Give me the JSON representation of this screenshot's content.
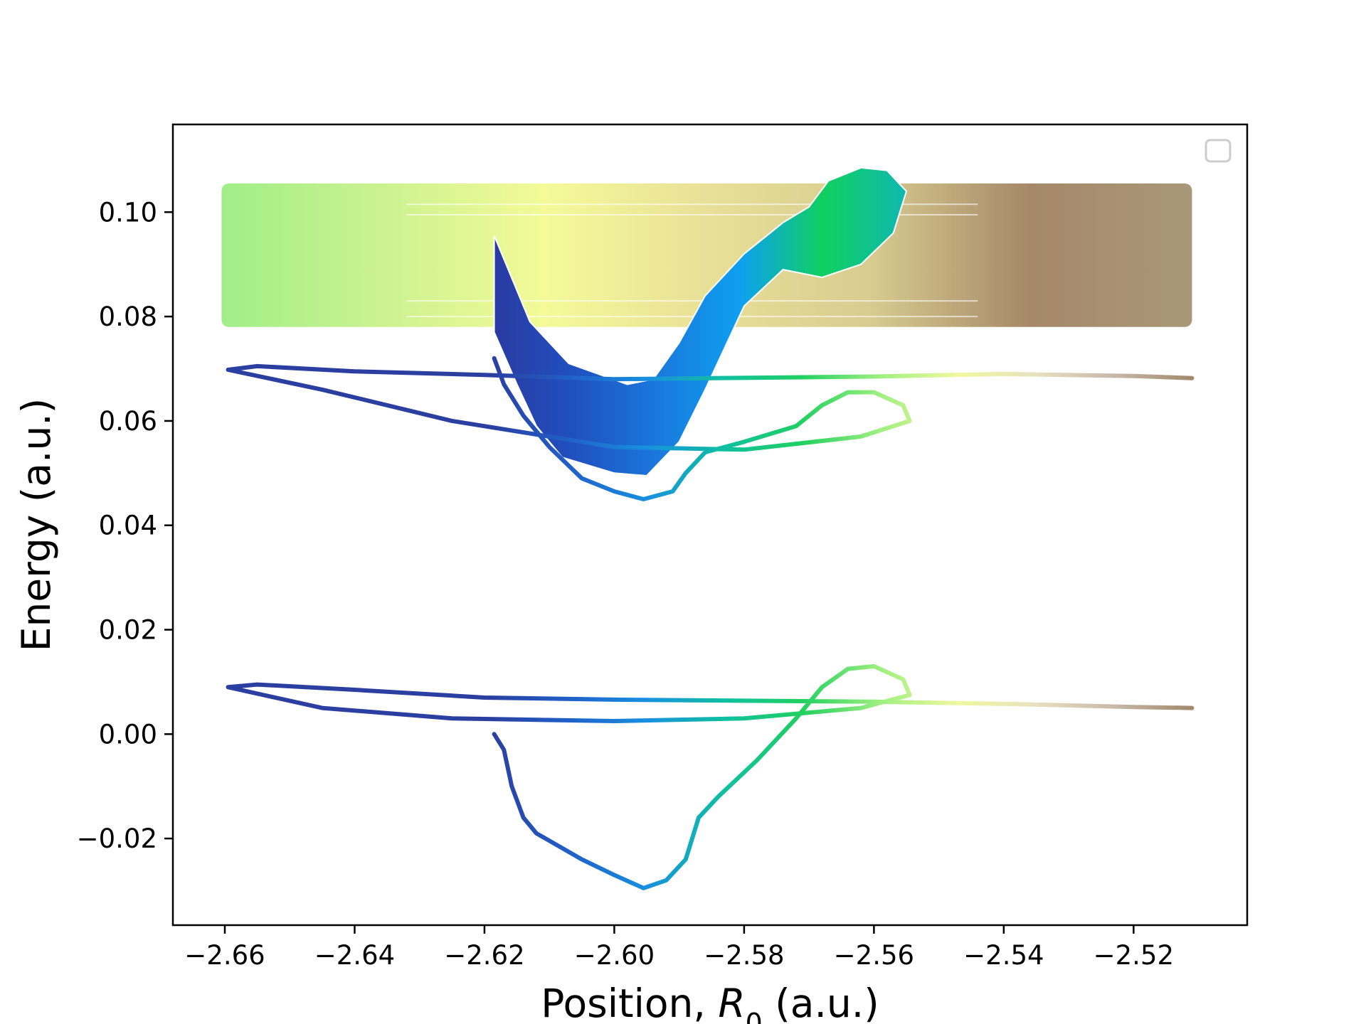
{
  "chart_data": {
    "type": "line",
    "xlabel": "Position, R_0 (a.u.)",
    "xlabel_parts": {
      "pre": "Position, ",
      "var": "R",
      "sub": "0",
      "post": " (a.u.)"
    },
    "ylabel": "Energy (a.u.)",
    "xlim": [
      -2.668,
      -2.5025
    ],
    "ylim": [
      -0.0366,
      0.1168
    ],
    "xticks": [
      -2.66,
      -2.64,
      -2.62,
      -2.6,
      -2.58,
      -2.56,
      -2.54,
      -2.52
    ],
    "xtick_labels": [
      "−2.66",
      "−2.64",
      "−2.62",
      "−2.60",
      "−2.58",
      "−2.56",
      "−2.54",
      "−2.52"
    ],
    "yticks": [
      -0.02,
      0.0,
      0.02,
      0.04,
      0.06,
      0.08,
      0.1
    ],
    "ytick_labels": [
      "−0.02",
      "0.00",
      "0.02",
      "0.04",
      "0.06",
      "0.08",
      "0.10"
    ],
    "grid": false,
    "legend": {
      "placement": "upper-right",
      "entries": []
    },
    "colors": {
      "axis": "#000000",
      "legend_border": "#cccccc"
    },
    "series": [
      {
        "role": "ground-state-trajectory",
        "gradient": [
          "#2b3fa0",
          "#2060c8",
          "#1890e0",
          "#10c0a0",
          "#20d060",
          "#a0f080",
          "#f0f8a0",
          "#e8e0c0",
          "#c8b8a8",
          "#a08a6a"
        ],
        "points": [
          [
            -2.6185,
            0.0
          ],
          [
            -2.617,
            -0.003
          ],
          [
            -2.6158,
            -0.01
          ],
          [
            -2.614,
            -0.016
          ],
          [
            -2.612,
            -0.019
          ],
          [
            -2.605,
            -0.024
          ],
          [
            -2.6,
            -0.027
          ],
          [
            -2.5955,
            -0.0295
          ],
          [
            -2.592,
            -0.028
          ],
          [
            -2.589,
            -0.024
          ],
          [
            -2.587,
            -0.016
          ],
          [
            -2.584,
            -0.012
          ],
          [
            -2.578,
            -0.005
          ],
          [
            -2.572,
            0.003
          ],
          [
            -2.568,
            0.009
          ],
          [
            -2.564,
            0.0125
          ],
          [
            -2.56,
            0.013
          ],
          [
            -2.5555,
            0.0105
          ],
          [
            -2.5545,
            0.0075
          ],
          [
            -2.562,
            0.005
          ],
          [
            -2.58,
            0.003
          ],
          [
            -2.6,
            0.0025
          ],
          [
            -2.625,
            0.003
          ],
          [
            -2.645,
            0.005
          ],
          [
            -2.6595,
            0.009
          ],
          [
            -2.655,
            0.0095
          ],
          [
            -2.64,
            0.0085
          ],
          [
            -2.62,
            0.007
          ],
          [
            -2.6,
            0.0066
          ],
          [
            -2.56,
            0.0062
          ],
          [
            -2.54,
            0.0058
          ],
          [
            -2.52,
            0.0052
          ],
          [
            -2.511,
            0.005
          ]
        ]
      },
      {
        "role": "excited-state-1-trajectory",
        "gradient": [
          "#2b3fa0",
          "#2060c8",
          "#1890e0",
          "#10c0a0",
          "#20d060",
          "#a0f080",
          "#f0f8a0",
          "#e8e0c0",
          "#c8b8a8",
          "#a08a6a"
        ],
        "points": [
          [
            -2.6185,
            0.072
          ],
          [
            -2.617,
            0.067
          ],
          [
            -2.614,
            0.061
          ],
          [
            -2.61,
            0.055
          ],
          [
            -2.605,
            0.049
          ],
          [
            -2.6,
            0.0465
          ],
          [
            -2.5955,
            0.045
          ],
          [
            -2.591,
            0.0465
          ],
          [
            -2.589,
            0.05
          ],
          [
            -2.586,
            0.054
          ],
          [
            -2.58,
            0.056
          ],
          [
            -2.572,
            0.059
          ],
          [
            -2.568,
            0.063
          ],
          [
            -2.564,
            0.0655
          ],
          [
            -2.56,
            0.0655
          ],
          [
            -2.5555,
            0.063
          ],
          [
            -2.5545,
            0.06
          ],
          [
            -2.562,
            0.057
          ],
          [
            -2.58,
            0.0545
          ],
          [
            -2.6,
            0.055
          ],
          [
            -2.625,
            0.06
          ],
          [
            -2.645,
            0.066
          ],
          [
            -2.6595,
            0.0698
          ],
          [
            -2.655,
            0.0705
          ],
          [
            -2.64,
            0.0695
          ],
          [
            -2.62,
            0.0688
          ],
          [
            -2.6,
            0.068
          ],
          [
            -2.56,
            0.0685
          ],
          [
            -2.54,
            0.069
          ],
          [
            -2.52,
            0.0686
          ],
          [
            -2.511,
            0.0682
          ]
        ]
      }
    ],
    "bands": [
      {
        "role": "excited-state-2-band",
        "energy_range": [
          0.078,
          0.1055
        ],
        "x_range": [
          -2.6605,
          -2.511
        ],
        "gradient": [
          "#a0ee88",
          "#ccf290",
          "#f4fa98",
          "#e8e098",
          "#d8cc90",
          "#a68868",
          "#a89878"
        ]
      },
      {
        "role": "excited-state-2-wavepacket",
        "points": [
          [
            -2.6185,
            0.0955
          ],
          [
            -2.616,
            0.088
          ],
          [
            -2.613,
            0.079
          ],
          [
            -2.607,
            0.071
          ],
          [
            -2.598,
            0.067
          ],
          [
            -2.594,
            0.068
          ],
          [
            -2.59,
            0.075
          ],
          [
            -2.586,
            0.084
          ],
          [
            -2.58,
            0.092
          ],
          [
            -2.576,
            0.096
          ],
          [
            -2.574,
            0.098
          ],
          [
            -2.57,
            0.101
          ],
          [
            -2.567,
            0.106
          ],
          [
            -2.562,
            0.1085
          ],
          [
            -2.558,
            0.108
          ],
          [
            -2.555,
            0.104
          ],
          [
            -2.557,
            0.096
          ],
          [
            -2.562,
            0.09
          ],
          [
            -2.568,
            0.0875
          ],
          [
            -2.574,
            0.089
          ],
          [
            -2.58,
            0.082
          ],
          [
            -2.586,
            0.066
          ],
          [
            -2.59,
            0.056
          ],
          [
            -2.595,
            0.0495
          ],
          [
            -2.6,
            0.05
          ],
          [
            -2.608,
            0.053
          ],
          [
            -2.612,
            0.059
          ],
          [
            -2.615,
            0.067
          ],
          [
            -2.6185,
            0.077
          ]
        ],
        "gradient": [
          "#2a3aa0",
          "#2050c0",
          "#1a78dc",
          "#0ea0f0",
          "#10d060",
          "#10b8b0"
        ]
      }
    ]
  }
}
